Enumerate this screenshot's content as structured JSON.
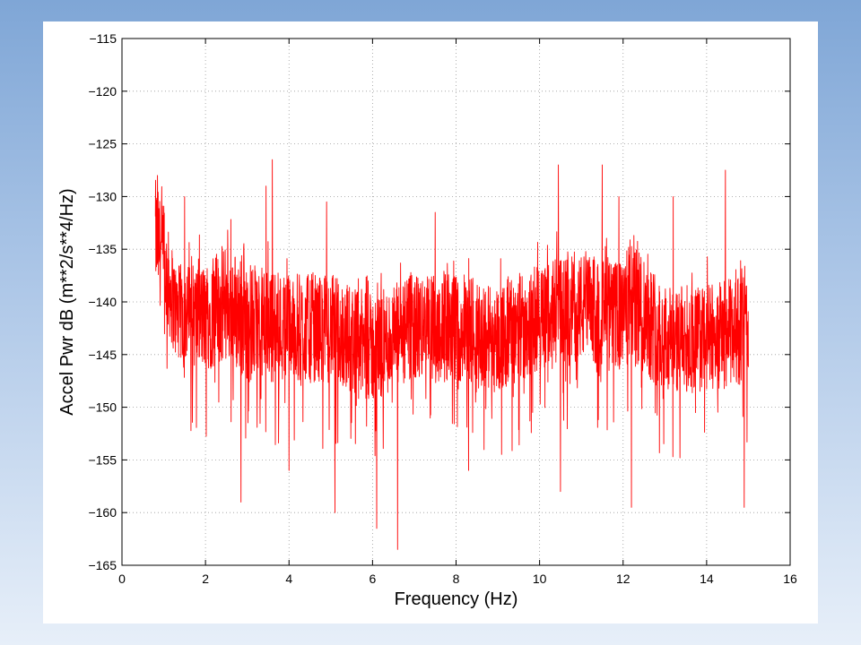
{
  "chart_data": {
    "type": "line",
    "title": "",
    "xlabel": "Frequency (Hz)",
    "ylabel": "Accel Pwr dB (m**2/s**4/Hz)",
    "xlim": [
      0,
      16
    ],
    "ylim": [
      -165,
      -115
    ],
    "xticks": [
      0,
      2,
      4,
      6,
      8,
      10,
      12,
      14,
      16
    ],
    "yticks": [
      -115,
      -120,
      -125,
      -130,
      -135,
      -140,
      -145,
      -150,
      -155,
      -160,
      -165
    ],
    "grid": true,
    "legend": "none",
    "series": [
      {
        "color": "#ff0000",
        "x_range": [
          0.8,
          15.0
        ],
        "envelope": [
          {
            "x": 0.8,
            "lower": -138,
            "upper": -129
          },
          {
            "x": 1.0,
            "lower": -141,
            "upper": -132
          },
          {
            "x": 1.3,
            "lower": -145,
            "upper": -137
          },
          {
            "x": 2.0,
            "lower": -146,
            "upper": -137
          },
          {
            "x": 2.5,
            "lower": -145,
            "upper": -135
          },
          {
            "x": 3.0,
            "lower": -147,
            "upper": -137
          },
          {
            "x": 4.0,
            "lower": -147,
            "upper": -138
          },
          {
            "x": 5.0,
            "lower": -147,
            "upper": -138
          },
          {
            "x": 6.0,
            "lower": -149,
            "upper": -140
          },
          {
            "x": 7.0,
            "lower": -147,
            "upper": -138
          },
          {
            "x": 8.0,
            "lower": -147,
            "upper": -138
          },
          {
            "x": 9.0,
            "lower": -148,
            "upper": -139
          },
          {
            "x": 10.0,
            "lower": -146,
            "upper": -137
          },
          {
            "x": 11.0,
            "lower": -145,
            "upper": -136
          },
          {
            "x": 12.0,
            "lower": -146,
            "upper": -137
          },
          {
            "x": 12.2,
            "lower": -145,
            "upper": -134
          },
          {
            "x": 13.0,
            "lower": -148,
            "upper": -139
          },
          {
            "x": 14.0,
            "lower": -148,
            "upper": -139
          },
          {
            "x": 15.0,
            "lower": -147,
            "upper": -138
          }
        ],
        "spikes": [
          {
            "x": 0.85,
            "y": -128
          },
          {
            "x": 1.5,
            "y": -130
          },
          {
            "x": 2.85,
            "y": -159
          },
          {
            "x": 3.45,
            "y": -129
          },
          {
            "x": 3.6,
            "y": -126.5
          },
          {
            "x": 4.0,
            "y": -156
          },
          {
            "x": 4.9,
            "y": -130.5
          },
          {
            "x": 5.1,
            "y": -160
          },
          {
            "x": 6.1,
            "y": -161.5
          },
          {
            "x": 6.6,
            "y": -163.5
          },
          {
            "x": 7.5,
            "y": -131.5
          },
          {
            "x": 8.3,
            "y": -156
          },
          {
            "x": 10.45,
            "y": -127
          },
          {
            "x": 10.5,
            "y": -158
          },
          {
            "x": 11.5,
            "y": -127
          },
          {
            "x": 11.9,
            "y": -130
          },
          {
            "x": 12.2,
            "y": -159.5
          },
          {
            "x": 13.2,
            "y": -130
          },
          {
            "x": 14.45,
            "y": -127.5
          },
          {
            "x": 14.9,
            "y": -159.5
          }
        ]
      }
    ]
  }
}
